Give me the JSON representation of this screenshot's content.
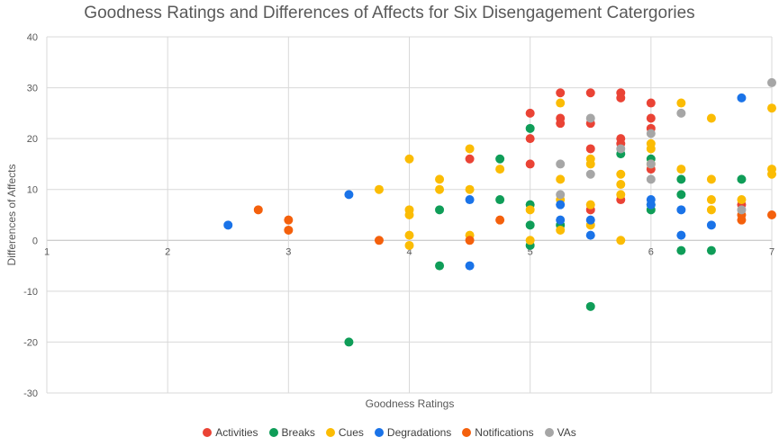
{
  "chart_data": {
    "type": "scatter",
    "title": "Goodness Ratings and Differences of Affects for Six Disengagement Catergories",
    "xlabel": "Goodness Ratings",
    "ylabel": "Differences of Affects",
    "xlim": [
      1,
      7
    ],
    "ylim": [
      -30,
      40
    ],
    "xticks": [
      1,
      2,
      3,
      4,
      5,
      6,
      7
    ],
    "yticks": [
      -30,
      -20,
      -10,
      0,
      10,
      20,
      30,
      40
    ],
    "legend_position": "bottom",
    "series": [
      {
        "name": "Activities",
        "color": "#ea4335",
        "points": [
          [
            4.5,
            16
          ],
          [
            5,
            25
          ],
          [
            5,
            20
          ],
          [
            5,
            15
          ],
          [
            5.25,
            29
          ],
          [
            5.25,
            24
          ],
          [
            5.25,
            23
          ],
          [
            5.5,
            29
          ],
          [
            5.5,
            23
          ],
          [
            5.5,
            18
          ],
          [
            5.5,
            6
          ],
          [
            5.75,
            29
          ],
          [
            5.75,
            28
          ],
          [
            5.75,
            20
          ],
          [
            5.75,
            19
          ],
          [
            5.75,
            8
          ],
          [
            6,
            27
          ],
          [
            6,
            24
          ],
          [
            6,
            22
          ],
          [
            6,
            14
          ],
          [
            6.75,
            7
          ]
        ]
      },
      {
        "name": "Breaks",
        "color": "#0f9d58",
        "points": [
          [
            3.5,
            -20
          ],
          [
            4.25,
            -5
          ],
          [
            4.25,
            6
          ],
          [
            4.75,
            16
          ],
          [
            4.75,
            8
          ],
          [
            5,
            22
          ],
          [
            5,
            7
          ],
          [
            5,
            3
          ],
          [
            5,
            -1
          ],
          [
            5.25,
            3
          ],
          [
            5.5,
            -13
          ],
          [
            5.75,
            17
          ],
          [
            6,
            16
          ],
          [
            6,
            7
          ],
          [
            6,
            6
          ],
          [
            6.25,
            12
          ],
          [
            6.25,
            9
          ],
          [
            6.25,
            -2
          ],
          [
            6.5,
            -2
          ],
          [
            6.75,
            12
          ]
        ]
      },
      {
        "name": "Cues",
        "color": "#fbbc04",
        "points": [
          [
            3.75,
            10
          ],
          [
            4,
            16
          ],
          [
            4,
            6
          ],
          [
            4,
            5
          ],
          [
            4,
            1
          ],
          [
            4,
            -1
          ],
          [
            4.25,
            12
          ],
          [
            4.25,
            10
          ],
          [
            4.5,
            18
          ],
          [
            4.5,
            10
          ],
          [
            4.5,
            1
          ],
          [
            4.75,
            14
          ],
          [
            5,
            6
          ],
          [
            5,
            0
          ],
          [
            5.25,
            27
          ],
          [
            5.25,
            12
          ],
          [
            5.25,
            8
          ],
          [
            5.25,
            2
          ],
          [
            5.5,
            16
          ],
          [
            5.5,
            15
          ],
          [
            5.5,
            7
          ],
          [
            5.5,
            3
          ],
          [
            5.75,
            13
          ],
          [
            5.75,
            11
          ],
          [
            5.75,
            9
          ],
          [
            5.75,
            0
          ],
          [
            6,
            19
          ],
          [
            6,
            18
          ],
          [
            6,
            15
          ],
          [
            6.25,
            27
          ],
          [
            6.25,
            14
          ],
          [
            6.5,
            24
          ],
          [
            6.5,
            12
          ],
          [
            6.5,
            8
          ],
          [
            6.5,
            6
          ],
          [
            6.75,
            8
          ],
          [
            7,
            26
          ],
          [
            7,
            14
          ],
          [
            7,
            13
          ]
        ]
      },
      {
        "name": "Degradations",
        "color": "#1a73e8",
        "points": [
          [
            2.5,
            3
          ],
          [
            3.5,
            9
          ],
          [
            4.5,
            8
          ],
          [
            4.5,
            -5
          ],
          [
            5.25,
            7
          ],
          [
            5.25,
            4
          ],
          [
            5.5,
            4
          ],
          [
            5.5,
            1
          ],
          [
            6,
            8
          ],
          [
            6,
            7
          ],
          [
            6.25,
            6
          ],
          [
            6.25,
            1
          ],
          [
            6.5,
            3
          ],
          [
            6.75,
            28
          ]
        ]
      },
      {
        "name": "Notifications",
        "color": "#f4600c",
        "points": [
          [
            2.75,
            6
          ],
          [
            3,
            4
          ],
          [
            3,
            2
          ],
          [
            3.75,
            0
          ],
          [
            4.5,
            0
          ],
          [
            4.75,
            4
          ],
          [
            6.75,
            4
          ],
          [
            6.75,
            5
          ],
          [
            7,
            5
          ]
        ]
      },
      {
        "name": "VAs",
        "color": "#a6a6a6",
        "points": [
          [
            5.25,
            15
          ],
          [
            5.25,
            9
          ],
          [
            5.5,
            24
          ],
          [
            5.5,
            13
          ],
          [
            5.75,
            18
          ],
          [
            6,
            21
          ],
          [
            6,
            15
          ],
          [
            6,
            12
          ],
          [
            6.25,
            25
          ],
          [
            6.75,
            6
          ],
          [
            7,
            31
          ]
        ]
      }
    ]
  }
}
